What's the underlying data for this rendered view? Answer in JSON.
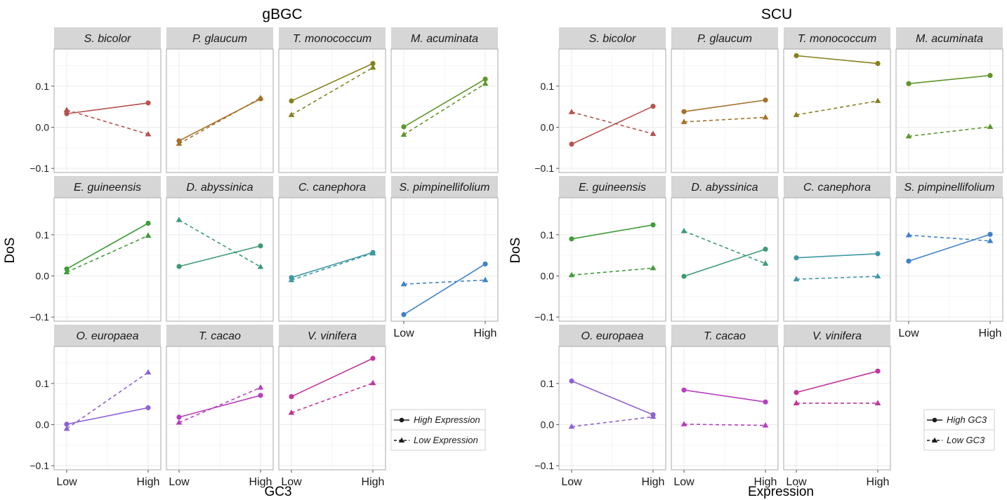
{
  "chart_data": [
    {
      "type": "line",
      "title": "gBGC",
      "xlabel": "GC3",
      "ylabel": "DoS",
      "x": [
        "Low",
        "High"
      ],
      "ylim": [
        -0.11,
        0.19
      ],
      "yticks": [
        -0.1,
        0.0,
        0.1
      ],
      "ytick_labels": [
        "−0.1",
        "0.0",
        "0.1"
      ],
      "legend": {
        "placement": "right",
        "entries": [
          {
            "label": "High Expression",
            "linestyle": "solid",
            "marker": "circle"
          },
          {
            "label": "Low Expression",
            "linestyle": "dashed",
            "marker": "triangle"
          }
        ]
      },
      "panels": [
        {
          "name": "S. bicolor",
          "color": "#b5534f",
          "series": [
            {
              "name": "High Expression",
              "values": [
                0.033,
                0.059
              ]
            },
            {
              "name": "Low Expression",
              "values": [
                0.042,
                -0.017
              ]
            }
          ]
        },
        {
          "name": "P. glaucum",
          "color": "#a6702a",
          "series": [
            {
              "name": "High Expression",
              "values": [
                -0.033,
                0.069
              ]
            },
            {
              "name": "Low Expression",
              "values": [
                -0.04,
                0.071
              ]
            }
          ]
        },
        {
          "name": "T. monococcum",
          "color": "#86801e",
          "series": [
            {
              "name": "High Expression",
              "values": [
                0.064,
                0.155
              ]
            },
            {
              "name": "Low Expression",
              "values": [
                0.03,
                0.145
              ]
            }
          ]
        },
        {
          "name": "M. acuminata",
          "color": "#5e962a",
          "series": [
            {
              "name": "High Expression",
              "values": [
                0.001,
                0.117
              ]
            },
            {
              "name": "Low Expression",
              "values": [
                -0.018,
                0.106
              ]
            }
          ]
        },
        {
          "name": "E. guineensis",
          "color": "#3f9b38",
          "series": [
            {
              "name": "High Expression",
              "values": [
                0.017,
                0.128
              ]
            },
            {
              "name": "Low Expression",
              "values": [
                0.009,
                0.098
              ]
            }
          ]
        },
        {
          "name": "D. abyssinica",
          "color": "#3c9a74",
          "series": [
            {
              "name": "High Expression",
              "values": [
                0.023,
                0.073
              ]
            },
            {
              "name": "Low Expression",
              "values": [
                0.136,
                0.022
              ]
            }
          ]
        },
        {
          "name": "C. canephora",
          "color": "#3f98a6",
          "series": [
            {
              "name": "High Expression",
              "values": [
                -0.004,
                0.057
              ]
            },
            {
              "name": "Low Expression",
              "values": [
                -0.01,
                0.055
              ]
            }
          ]
        },
        {
          "name": "S. pimpinellifolium",
          "color": "#3f82c8",
          "series": [
            {
              "name": "High Expression",
              "values": [
                -0.094,
                0.029
              ]
            },
            {
              "name": "Low Expression",
              "values": [
                -0.02,
                -0.01
              ]
            }
          ]
        },
        {
          "name": "O. europaea",
          "color": "#8e62d6",
          "series": [
            {
              "name": "High Expression",
              "values": [
                0.001,
                0.041
              ]
            },
            {
              "name": "Low Expression",
              "values": [
                -0.01,
                0.127
              ]
            }
          ]
        },
        {
          "name": "T. cacao",
          "color": "#b53fc0",
          "series": [
            {
              "name": "High Expression",
              "values": [
                0.018,
                0.071
              ]
            },
            {
              "name": "Low Expression",
              "values": [
                0.005,
                0.09
              ]
            }
          ]
        },
        {
          "name": "V. vinifera",
          "color": "#c0359a",
          "series": [
            {
              "name": "High Expression",
              "values": [
                0.068,
                0.161
              ]
            },
            {
              "name": "Low Expression",
              "values": [
                0.029,
                0.101
              ]
            }
          ]
        }
      ]
    },
    {
      "type": "line",
      "title": "SCU",
      "xlabel": "Expression",
      "ylabel": "DoS",
      "x": [
        "Low",
        "High"
      ],
      "ylim": [
        -0.11,
        0.19
      ],
      "yticks": [
        -0.1,
        0.0,
        0.1
      ],
      "ytick_labels": [
        "−0.1",
        "0.0",
        "0.1"
      ],
      "legend": {
        "placement": "right",
        "entries": [
          {
            "label": "High GC3",
            "linestyle": "solid",
            "marker": "circle"
          },
          {
            "label": "Low GC3",
            "linestyle": "dashed",
            "marker": "triangle"
          }
        ]
      },
      "panels": [
        {
          "name": "S. bicolor",
          "color": "#b5534f",
          "series": [
            {
              "name": "High GC3",
              "values": [
                -0.041,
                0.051
              ]
            },
            {
              "name": "Low GC3",
              "values": [
                0.037,
                -0.016
              ]
            }
          ]
        },
        {
          "name": "P. glaucum",
          "color": "#a6702a",
          "series": [
            {
              "name": "High GC3",
              "values": [
                0.038,
                0.066
              ]
            },
            {
              "name": "Low GC3",
              "values": [
                0.013,
                0.024
              ]
            }
          ]
        },
        {
          "name": "T. monococcum",
          "color": "#86801e",
          "series": [
            {
              "name": "High GC3",
              "values": [
                0.174,
                0.155
              ]
            },
            {
              "name": "Low GC3",
              "values": [
                0.03,
                0.064
              ]
            }
          ]
        },
        {
          "name": "M. acuminata",
          "color": "#5e962a",
          "series": [
            {
              "name": "High GC3",
              "values": [
                0.106,
                0.126
              ]
            },
            {
              "name": "Low GC3",
              "values": [
                -0.022,
                0.001
              ]
            }
          ]
        },
        {
          "name": "E. guineensis",
          "color": "#3f9b38",
          "series": [
            {
              "name": "High GC3",
              "values": [
                0.09,
                0.124
              ]
            },
            {
              "name": "Low GC3",
              "values": [
                0.002,
                0.019
              ]
            }
          ]
        },
        {
          "name": "D. abyssinica",
          "color": "#3c9a74",
          "series": [
            {
              "name": "High GC3",
              "values": [
                -0.001,
                0.065
              ]
            },
            {
              "name": "Low GC3",
              "values": [
                0.109,
                0.03
              ]
            }
          ]
        },
        {
          "name": "C. canephora",
          "color": "#3f98a6",
          "series": [
            {
              "name": "High GC3",
              "values": [
                0.044,
                0.054
              ]
            },
            {
              "name": "Low GC3",
              "values": [
                -0.008,
                -0.001
              ]
            }
          ]
        },
        {
          "name": "S. pimpinellifolium",
          "color": "#3f82c8",
          "series": [
            {
              "name": "High GC3",
              "values": [
                0.036,
                0.101
              ]
            },
            {
              "name": "Low GC3",
              "values": [
                0.099,
                0.085
              ]
            }
          ]
        },
        {
          "name": "O. europaea",
          "color": "#8e62d6",
          "series": [
            {
              "name": "High GC3",
              "values": [
                0.106,
                0.024
              ]
            },
            {
              "name": "Low GC3",
              "values": [
                -0.005,
                0.019
              ]
            }
          ]
        },
        {
          "name": "T. cacao",
          "color": "#b53fc0",
          "series": [
            {
              "name": "High GC3",
              "values": [
                0.084,
                0.055
              ]
            },
            {
              "name": "Low GC3",
              "values": [
                0.001,
                -0.002
              ]
            }
          ]
        },
        {
          "name": "V. vinifera",
          "color": "#c0359a",
          "series": [
            {
              "name": "High GC3",
              "values": [
                0.078,
                0.13
              ]
            },
            {
              "name": "Low GC3",
              "values": [
                0.052,
                0.052
              ]
            }
          ]
        }
      ]
    }
  ]
}
